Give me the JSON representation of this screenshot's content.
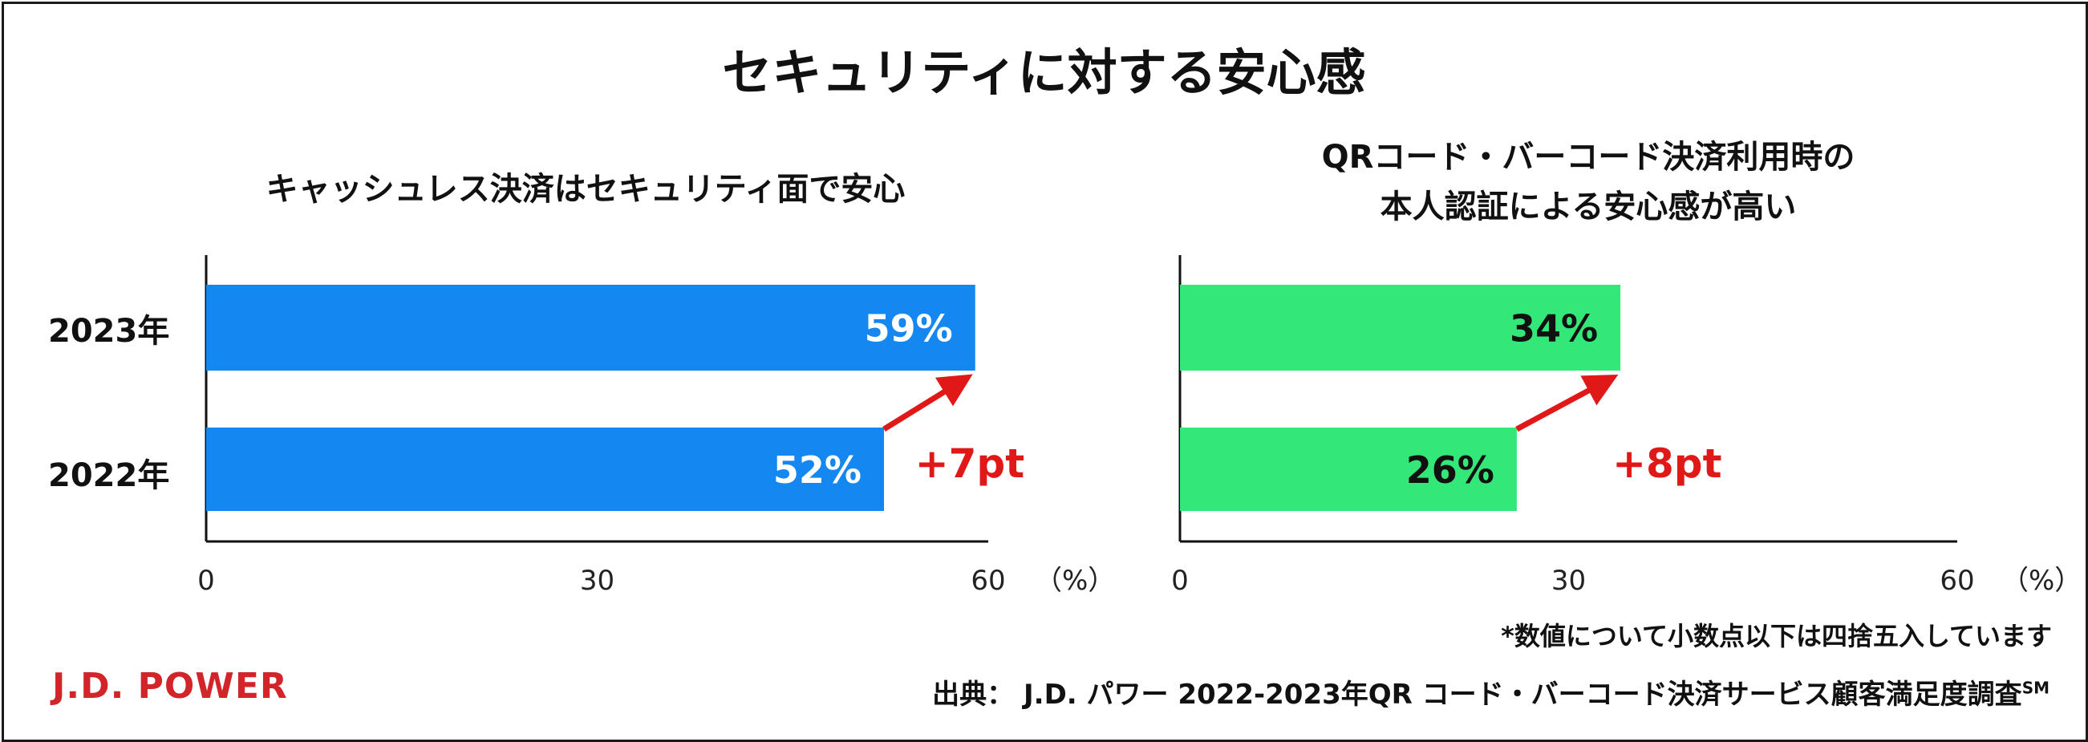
{
  "title": "セキュリティに対する安心感",
  "chart_data": [
    {
      "type": "bar",
      "orientation": "horizontal",
      "subtitle_lines": [
        "キャッシュレス決済はセキュリティ面で安心"
      ],
      "categories": [
        "2023年",
        "2022年"
      ],
      "values": [
        59,
        52
      ],
      "value_labels": [
        "59%",
        "52%"
      ],
      "xlim": [
        0,
        60
      ],
      "ticks": [
        "0",
        "30",
        "60"
      ],
      "unit": "（%）",
      "bar_color": "#1487f0",
      "label_color": "#ffffff",
      "change_label": "+7pt",
      "change_color": "#e01818"
    },
    {
      "type": "bar",
      "orientation": "horizontal",
      "subtitle_lines": [
        "QRコード・バーコード決済利用時の",
        "本人認証による安心感が高い"
      ],
      "categories": [
        "2023年",
        "2022年"
      ],
      "values": [
        34,
        26
      ],
      "value_labels": [
        "34%",
        "26%"
      ],
      "xlim": [
        0,
        60
      ],
      "ticks": [
        "0",
        "30",
        "60"
      ],
      "unit": "（%）",
      "bar_color": "#33e878",
      "label_color": "#111111",
      "change_label": "+8pt",
      "change_color": "#e01818"
    }
  ],
  "note": "*数値について小数点以下は四捨五入しています",
  "source": {
    "text": "出典：  J.D. パワー 2022-2023年QR コード・バーコード決済サービス顧客満足度調査",
    "mark": "SM"
  },
  "logo": "J.D. POWER"
}
